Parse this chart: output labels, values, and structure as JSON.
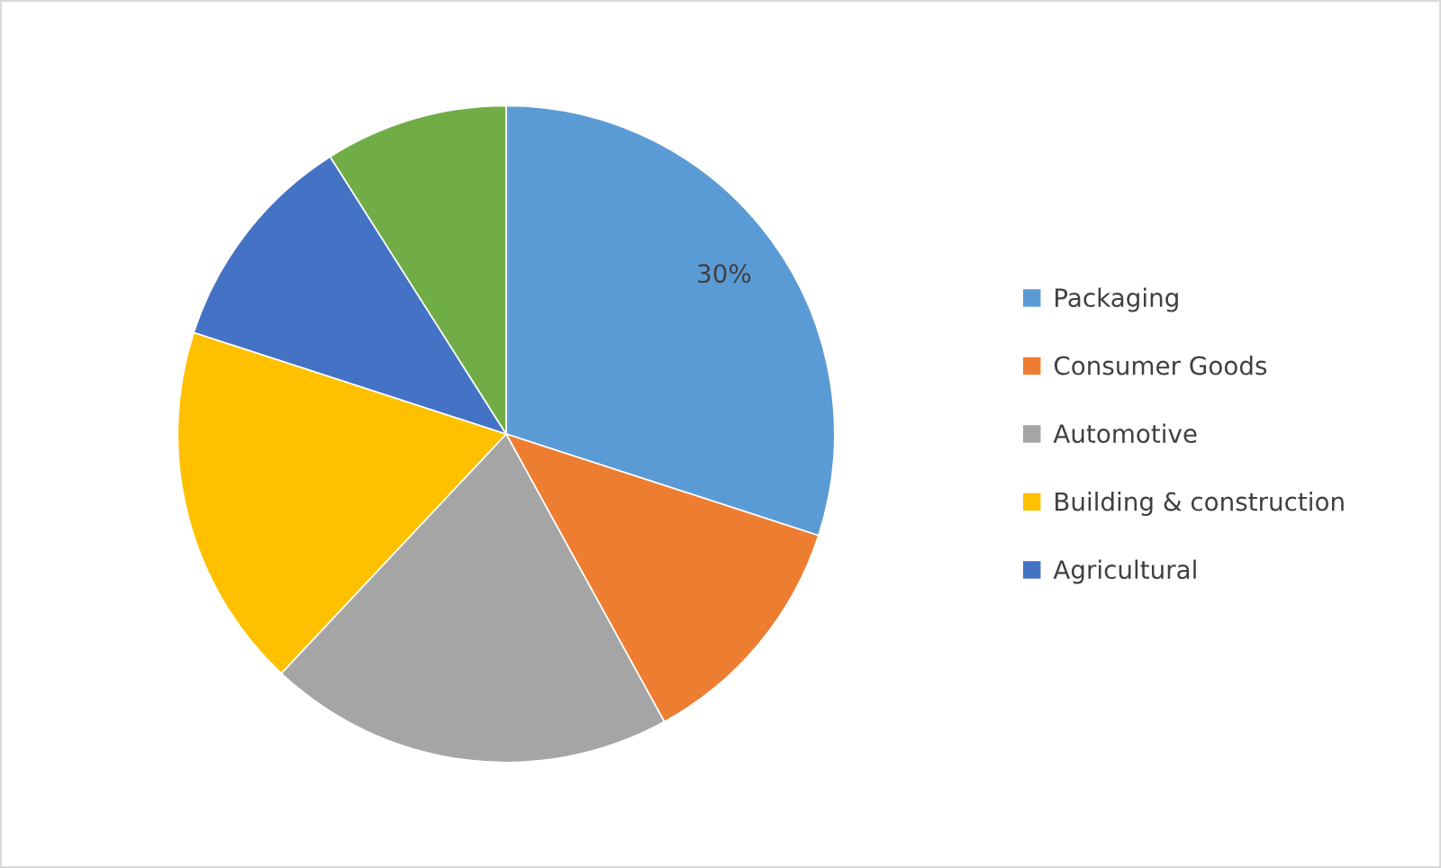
{
  "chart_data": {
    "type": "pie",
    "categories": [
      "Packaging",
      "Consumer Goods",
      "Automotive",
      "Building & construction",
      "Agricultural",
      null
    ],
    "values": [
      30,
      12,
      20,
      18,
      11,
      9
    ],
    "colors": [
      "#5b9bd5",
      "#ed7d31",
      "#a5a5a5",
      "#ffc000",
      "#4472c4",
      "#70ad47"
    ],
    "value_labels": [
      "30%",
      null,
      null,
      null,
      null,
      null
    ],
    "legend": "right"
  }
}
